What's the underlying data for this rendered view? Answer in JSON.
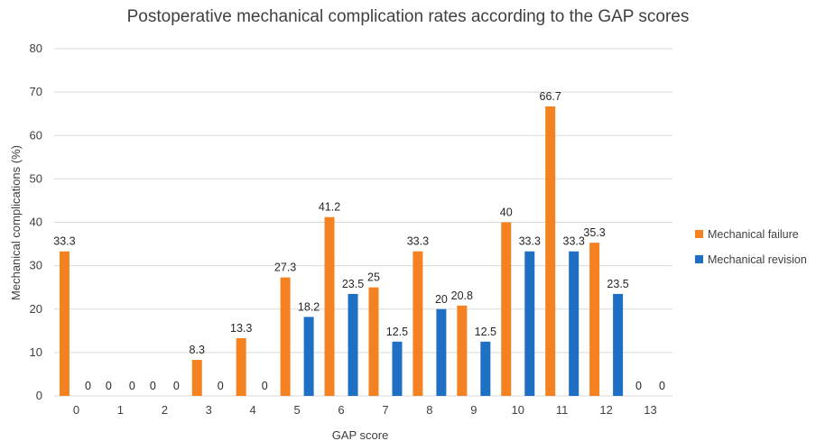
{
  "chart_data": {
    "type": "bar",
    "title": "Postoperative mechanical complication rates according to the GAP scores",
    "xlabel": "GAP score",
    "ylabel": "Mechanical complications (%)",
    "categories": [
      "0",
      "1",
      "2",
      "3",
      "4",
      "5",
      "6",
      "7",
      "8",
      "9",
      "10",
      "11",
      "12",
      "13"
    ],
    "ylim": [
      0,
      80
    ],
    "yticks": [
      0,
      10,
      20,
      30,
      40,
      50,
      60,
      70,
      80
    ],
    "grid": true,
    "legend_position": "right",
    "series": [
      {
        "name": "Mechanical failure",
        "color": "#F58220",
        "values": [
          33.3,
          0,
          0,
          8.3,
          13.3,
          27.3,
          41.2,
          25,
          33.3,
          20.8,
          40,
          66.7,
          35.3,
          0
        ],
        "labels": [
          "33.3",
          "0",
          "0",
          "8.3",
          "13.3",
          "27.3",
          "41.2",
          "25",
          "33.3",
          "20.8",
          "40",
          "66.7",
          "35.3",
          "0"
        ]
      },
      {
        "name": "Mechanical revision",
        "color": "#1F6FC5",
        "values": [
          0,
          0,
          0,
          0,
          0,
          18.2,
          23.5,
          12.5,
          20,
          12.5,
          33.3,
          33.3,
          23.5,
          0
        ],
        "labels": [
          "0",
          "0",
          "0",
          "0",
          "0",
          "18.2",
          "23.5",
          "12.5",
          "20",
          "12.5",
          "33.3",
          "33.3",
          "23.5",
          "0"
        ]
      }
    ]
  }
}
